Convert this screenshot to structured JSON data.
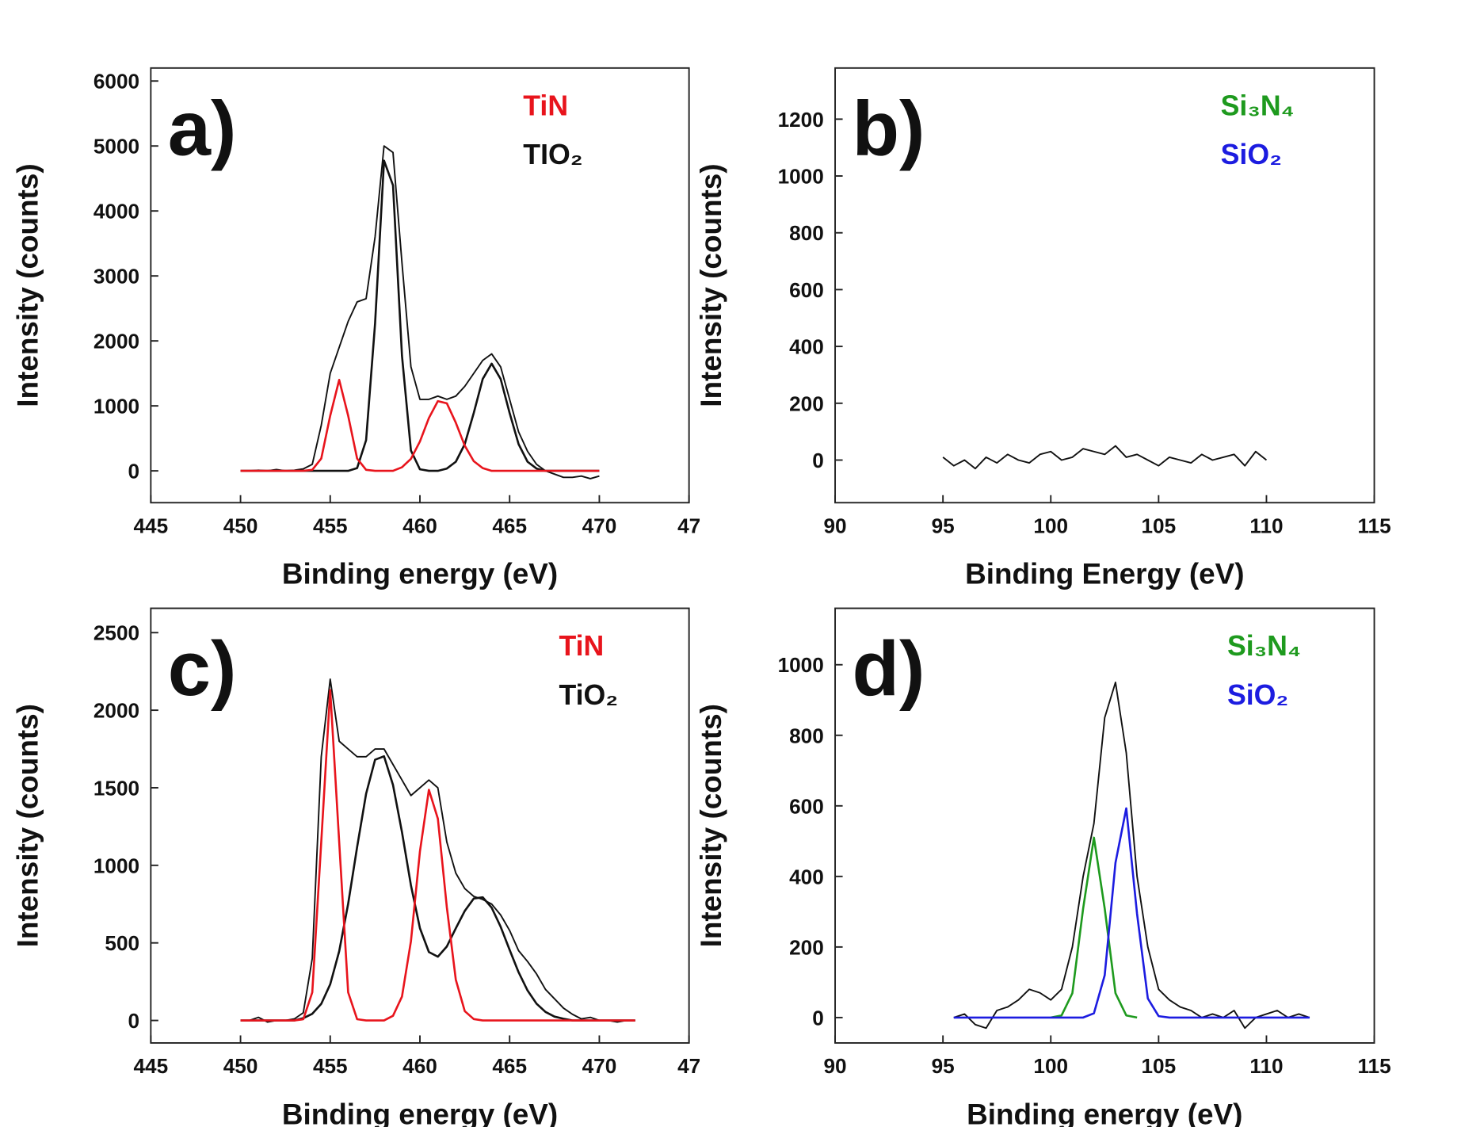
{
  "chart_data": [
    {
      "type": "line",
      "panel_label": "a)",
      "x_label": "Binding energy (eV)",
      "y_label": "Intensity (counts)",
      "xlim": [
        445,
        475
      ],
      "ylim": [
        -490,
        6200
      ],
      "xticks": [
        445,
        450,
        455,
        460,
        465,
        470,
        {
          "value": 475,
          "label": "47"
        }
      ],
      "yticks": [
        0,
        1000,
        2000,
        3000,
        4000,
        5000,
        6000
      ],
      "legend": [
        {
          "label": "TiN",
          "color": "#e8141c"
        },
        {
          "label": "TIO₂",
          "color": "#111111"
        }
      ],
      "x": [
        450,
        450.5,
        451,
        451.5,
        452,
        452.5,
        453,
        453.5,
        454,
        454.5,
        455,
        455.5,
        456,
        456.5,
        457,
        457.5,
        458,
        458.5,
        459,
        459.5,
        460,
        460.5,
        461,
        461.5,
        462,
        462.5,
        463,
        463.5,
        464,
        464.5,
        465,
        465.5,
        466,
        466.5,
        467,
        467.5,
        468,
        468.5,
        469,
        469.5,
        470
      ],
      "series": [
        {
          "color": "#111111",
          "values": [
            0,
            0,
            10,
            0,
            20,
            0,
            10,
            30,
            100,
            700,
            1500,
            1900,
            2300,
            2600,
            2650,
            3600,
            5000,
            4900,
            3200,
            1600,
            1100,
            1100,
            1150,
            1100,
            1150,
            1300,
            1500,
            1700,
            1800,
            1600,
            1100,
            600,
            300,
            100,
            0,
            -50,
            -100,
            -100,
            -80,
            -120,
            -80
          ]
        },
        {
          "color": "#111111",
          "values": [
            0,
            0,
            0,
            0,
            0,
            0,
            0,
            0,
            0,
            0,
            0,
            0,
            0,
            43,
            472,
            2268,
            4775,
            4395,
            1771,
            313,
            24,
            0,
            0,
            35,
            140,
            411,
            890,
            1414,
            1650,
            1414,
            890,
            411,
            140,
            35,
            0,
            0,
            0,
            0,
            0,
            0,
            0
          ]
        },
        {
          "color": "#e8141c",
          "values": [
            0,
            0,
            0,
            0,
            0,
            0,
            0,
            0,
            16,
            189,
            849,
            1400,
            849,
            189,
            16,
            0,
            0,
            0,
            55,
            185,
            452,
            813,
            1073,
            1040,
            741,
            388,
            149,
            42,
            0,
            0,
            0,
            0,
            0,
            0,
            0,
            0,
            0,
            0,
            0,
            0,
            0
          ]
        }
      ]
    },
    {
      "type": "line",
      "panel_label": "b)",
      "x_label": "Binding Energy (eV)",
      "y_label": "Intensity (counts)",
      "xlim": [
        90,
        115
      ],
      "ylim": [
        -150,
        1380
      ],
      "xticks": [
        90,
        95,
        100,
        105,
        110,
        115
      ],
      "yticks": [
        0,
        200,
        400,
        600,
        800,
        1000,
        1200
      ],
      "legend": [
        {
          "label": "Si₃N₄",
          "color": "#1e9a1e"
        },
        {
          "label": "SiO₂",
          "color": "#1c1ce0"
        }
      ],
      "x": [
        95,
        95.5,
        96,
        96.5,
        97,
        97.5,
        98,
        98.5,
        99,
        99.5,
        100,
        100.5,
        101,
        101.5,
        102,
        102.5,
        103,
        103.5,
        104,
        104.5,
        105,
        105.5,
        106,
        106.5,
        107,
        107.5,
        108,
        108.5,
        109,
        109.5,
        110
      ],
      "series": [
        {
          "color": "#111111",
          "values": [
            10,
            -20,
            0,
            -30,
            10,
            -10,
            20,
            0,
            -10,
            20,
            30,
            0,
            10,
            40,
            30,
            20,
            50,
            10,
            20,
            0,
            -20,
            10,
            0,
            -10,
            20,
            0,
            10,
            20,
            -20,
            30,
            0
          ]
        }
      ]
    },
    {
      "type": "line",
      "panel_label": "c)",
      "x_label": "Binding energy (eV)",
      "y_label": "Intensity (counts)",
      "xlim": [
        445,
        475
      ],
      "ylim": [
        -145,
        2657
      ],
      "xticks": [
        445,
        450,
        455,
        460,
        465,
        470,
        {
          "value": 475,
          "label": "47"
        }
      ],
      "yticks": [
        0,
        500,
        1000,
        1500,
        2000,
        2500
      ],
      "legend": [
        {
          "label": "TiN",
          "color": "#e8141c"
        },
        {
          "label": "TiO₂",
          "color": "#111111"
        }
      ],
      "x": [
        450,
        450.5,
        451,
        451.5,
        452,
        452.5,
        453,
        453.5,
        454,
        454.5,
        455,
        455.5,
        456,
        456.5,
        457,
        457.5,
        458,
        458.5,
        459,
        459.5,
        460,
        460.5,
        461,
        461.5,
        462,
        462.5,
        463,
        463.5,
        464,
        464.5,
        465,
        465.5,
        466,
        466.5,
        467,
        467.5,
        468,
        468.5,
        469,
        469.5,
        470,
        470.5,
        471,
        471.5,
        472
      ],
      "series": [
        {
          "color": "#111111",
          "values": [
            0,
            0,
            20,
            -10,
            0,
            0,
            10,
            50,
            400,
            1700,
            2200,
            1800,
            1750,
            1700,
            1700,
            1750,
            1750,
            1650,
            1550,
            1450,
            1500,
            1550,
            1500,
            1150,
            950,
            850,
            800,
            780,
            750,
            680,
            580,
            450,
            380,
            300,
            200,
            140,
            80,
            40,
            10,
            20,
            0,
            0,
            -10,
            0,
            0
          ]
        },
        {
          "color": "#111111",
          "values": [
            0,
            0,
            0,
            0,
            0,
            0,
            0,
            15,
            43,
            107,
            233,
            446,
            752,
            1118,
            1461,
            1681,
            1703,
            1518,
            1214,
            871,
            595,
            441,
            411,
            477,
            594,
            706,
            786,
            794,
            727,
            604,
            455,
            311,
            193,
            108,
            55,
            25,
            11,
            0,
            0,
            0,
            0,
            0,
            0,
            0,
            0
          ]
        },
        {
          "color": "#e8141c",
          "values": [
            0,
            0,
            0,
            0,
            0,
            0,
            0,
            8,
            181,
            1150,
            2130,
            1150,
            181,
            8,
            0,
            0,
            0,
            30,
            154,
            511,
            1089,
            1487,
            1301,
            730,
            263,
            60,
            9,
            0,
            0,
            0,
            0,
            0,
            0,
            0,
            0,
            0,
            0,
            0,
            0,
            0,
            0,
            0,
            0,
            0,
            0
          ]
        }
      ]
    },
    {
      "type": "line",
      "panel_label": "d)",
      "x_label": "Binding energy (eV)",
      "y_label": "Intensity (counts)",
      "xlim": [
        90,
        115
      ],
      "ylim": [
        -72,
        1160
      ],
      "xticks": [
        90,
        95,
        100,
        105,
        110,
        115
      ],
      "yticks": [
        0,
        200,
        400,
        600,
        800,
        1000
      ],
      "legend": [
        {
          "label": "Si₃N₄",
          "color": "#1e9a1e"
        },
        {
          "label": "SiO₂",
          "color": "#1c1ce0"
        }
      ],
      "x": [
        95.5,
        96,
        96.5,
        97,
        97.5,
        98,
        98.5,
        99,
        99.5,
        100,
        100.5,
        101,
        101.5,
        102,
        102.5,
        103,
        103.5,
        104,
        104.5,
        105,
        105.5,
        106,
        106.5,
        107,
        107.5,
        108,
        108.5,
        109,
        109.5,
        110,
        110.5,
        111,
        111.5,
        112
      ],
      "series": [
        {
          "color": "#111111",
          "values": [
            0,
            10,
            -20,
            -30,
            20,
            30,
            50,
            80,
            70,
            50,
            80,
            200,
            400,
            550,
            850,
            950,
            750,
            400,
            200,
            80,
            50,
            30,
            20,
            0,
            10,
            0,
            20,
            -30,
            0,
            10,
            20,
            0,
            10,
            0
          ]
        },
        {
          "color": "#1e9a1e",
          "values": [
            null,
            null,
            null,
            null,
            null,
            null,
            null,
            null,
            null,
            0,
            6,
            69,
            309,
            510,
            309,
            69,
            6,
            0,
            null,
            null,
            null,
            null,
            null,
            null,
            null,
            null,
            null,
            null,
            null,
            null,
            null,
            null,
            null,
            null
          ]
        },
        {
          "color": "#1c1ce0",
          "values": [
            0,
            0,
            0,
            0,
            0,
            0,
            0,
            0,
            0,
            0,
            0,
            0,
            0,
            12,
            120,
            439,
            593,
            294,
            54,
            4,
            0,
            0,
            0,
            0,
            0,
            0,
            0,
            0,
            0,
            0,
            0,
            0,
            0,
            0
          ]
        }
      ]
    }
  ]
}
